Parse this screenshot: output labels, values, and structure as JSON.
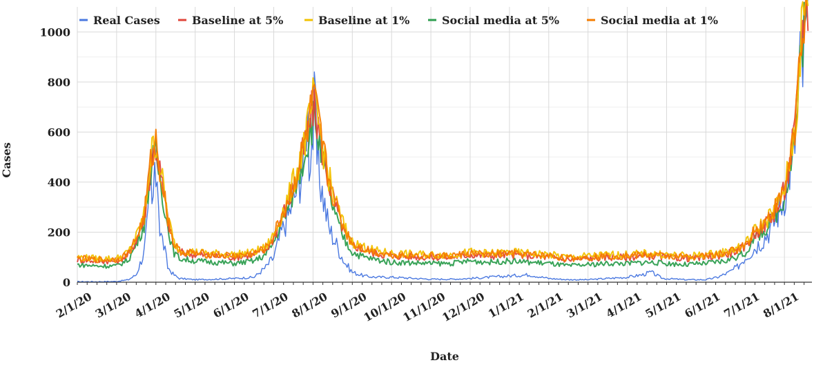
{
  "chart_data": {
    "type": "line",
    "title": "",
    "xlabel": "Date",
    "ylabel": "Cases",
    "ylim": [
      0,
      1100
    ],
    "yticks": [
      0,
      200,
      400,
      600,
      800,
      1000
    ],
    "x_tick_labels": [
      "2/1/20",
      "3/1/20",
      "4/1/20",
      "5/1/20",
      "6/1/20",
      "7/1/20",
      "8/1/20",
      "9/1/20",
      "10/1/20",
      "11/1/20",
      "12/1/20",
      "1/1/21",
      "2/1/21",
      "3/1/21",
      "4/1/21",
      "5/1/21",
      "6/1/21",
      "7/1/21",
      "8/1/21"
    ],
    "grid": true,
    "legend_position": "top",
    "x_start_month": "2/1/20",
    "x_end_date": "8/30/21",
    "note": "monthly index: 0 = 2/1/20, 1 = 3/1/20, ... 18 = 8/1/21",
    "series": [
      {
        "name": "Real Cases",
        "color": "#4a78e0",
        "points": [
          [
            0,
            2
          ],
          [
            0.5,
            2
          ],
          [
            1,
            3
          ],
          [
            1.3,
            10
          ],
          [
            1.5,
            30
          ],
          [
            1.7,
            120
          ],
          [
            1.8,
            250
          ],
          [
            1.85,
            480
          ],
          [
            1.9,
            300
          ],
          [
            2.0,
            430
          ],
          [
            2.05,
            450
          ],
          [
            2.1,
            200
          ],
          [
            2.2,
            150
          ],
          [
            2.3,
            60
          ],
          [
            2.45,
            30
          ],
          [
            2.6,
            15
          ],
          [
            3.0,
            10
          ],
          [
            3.5,
            12
          ],
          [
            4.0,
            15
          ],
          [
            4.5,
            20
          ],
          [
            4.8,
            60
          ],
          [
            5.0,
            100
          ],
          [
            5.2,
            200
          ],
          [
            5.4,
            280
          ],
          [
            5.6,
            380
          ],
          [
            5.8,
            500
          ],
          [
            5.85,
            730
          ],
          [
            5.9,
            500
          ],
          [
            6.0,
            600
          ],
          [
            6.05,
            720
          ],
          [
            6.1,
            480
          ],
          [
            6.25,
            350
          ],
          [
            6.4,
            220
          ],
          [
            6.6,
            150
          ],
          [
            6.8,
            80
          ],
          [
            7.0,
            40
          ],
          [
            7.3,
            25
          ],
          [
            7.6,
            20
          ],
          [
            8.0,
            20
          ],
          [
            9.0,
            12
          ],
          [
            9.5,
            12
          ],
          [
            10.0,
            15
          ],
          [
            10.5,
            20
          ],
          [
            11.0,
            25
          ],
          [
            11.5,
            30
          ],
          [
            12.0,
            15
          ],
          [
            12.5,
            10
          ],
          [
            13.0,
            10
          ],
          [
            13.5,
            15
          ],
          [
            14.0,
            20
          ],
          [
            14.4,
            30
          ],
          [
            14.6,
            40
          ],
          [
            14.9,
            15
          ],
          [
            15.5,
            10
          ],
          [
            16.0,
            10
          ],
          [
            16.3,
            20
          ],
          [
            16.6,
            40
          ],
          [
            16.8,
            60
          ],
          [
            17.0,
            100
          ],
          [
            17.2,
            130
          ],
          [
            17.5,
            180
          ],
          [
            17.7,
            230
          ],
          [
            17.9,
            300
          ],
          [
            18.0,
            350
          ],
          [
            18.1,
            420
          ],
          [
            18.3,
            600
          ],
          [
            18.42,
            900
          ],
          [
            18.48,
            830
          ],
          [
            18.55,
            1000
          ],
          [
            18.6,
            980
          ]
        ]
      },
      {
        "name": "Baseline at 5%",
        "color": "#e0453a",
        "points": [
          [
            0,
            90
          ],
          [
            0.5,
            85
          ],
          [
            1,
            85
          ],
          [
            1.3,
            110
          ],
          [
            1.5,
            170
          ],
          [
            1.7,
            250
          ],
          [
            1.8,
            380
          ],
          [
            1.9,
            500
          ],
          [
            2.0,
            540
          ],
          [
            2.05,
            500
          ],
          [
            2.15,
            400
          ],
          [
            2.3,
            250
          ],
          [
            2.45,
            150
          ],
          [
            2.6,
            120
          ],
          [
            3.0,
            110
          ],
          [
            3.5,
            105
          ],
          [
            4.0,
            100
          ],
          [
            4.5,
            110
          ],
          [
            4.8,
            130
          ],
          [
            5.0,
            180
          ],
          [
            5.2,
            260
          ],
          [
            5.4,
            330
          ],
          [
            5.6,
            430
          ],
          [
            5.8,
            550
          ],
          [
            5.9,
            620
          ],
          [
            6.0,
            700
          ],
          [
            6.1,
            650
          ],
          [
            6.25,
            520
          ],
          [
            6.4,
            400
          ],
          [
            6.6,
            290
          ],
          [
            6.8,
            200
          ],
          [
            7.0,
            150
          ],
          [
            7.3,
            130
          ],
          [
            7.6,
            115
          ],
          [
            8.0,
            105
          ],
          [
            9.0,
            100
          ],
          [
            9.5,
            100
          ],
          [
            10.0,
            110
          ],
          [
            10.5,
            105
          ],
          [
            11.0,
            110
          ],
          [
            11.5,
            105
          ],
          [
            12.0,
            100
          ],
          [
            12.5,
            90
          ],
          [
            13.0,
            95
          ],
          [
            13.5,
            100
          ],
          [
            14.0,
            100
          ],
          [
            14.5,
            105
          ],
          [
            15.0,
            100
          ],
          [
            15.5,
            95
          ],
          [
            16.0,
            100
          ],
          [
            16.5,
            110
          ],
          [
            17.0,
            140
          ],
          [
            17.2,
            190
          ],
          [
            17.5,
            230
          ],
          [
            17.7,
            270
          ],
          [
            17.9,
            320
          ],
          [
            18.0,
            370
          ],
          [
            18.1,
            440
          ],
          [
            18.3,
            650
          ],
          [
            18.42,
            950
          ],
          [
            18.5,
            1080
          ],
          [
            18.6,
            1100
          ]
        ]
      },
      {
        "name": "Baseline at 1%",
        "color": "#f2c200",
        "points": [
          [
            0,
            100
          ],
          [
            0.5,
            95
          ],
          [
            1,
            95
          ],
          [
            1.3,
            120
          ],
          [
            1.5,
            180
          ],
          [
            1.7,
            270
          ],
          [
            1.8,
            400
          ],
          [
            1.9,
            520
          ],
          [
            2.0,
            570
          ],
          [
            2.05,
            520
          ],
          [
            2.15,
            420
          ],
          [
            2.3,
            270
          ],
          [
            2.45,
            160
          ],
          [
            2.6,
            130
          ],
          [
            3.0,
            120
          ],
          [
            3.5,
            115
          ],
          [
            4.0,
            110
          ],
          [
            4.5,
            120
          ],
          [
            4.8,
            140
          ],
          [
            5.0,
            190
          ],
          [
            5.2,
            270
          ],
          [
            5.4,
            350
          ],
          [
            5.6,
            450
          ],
          [
            5.8,
            570
          ],
          [
            5.9,
            640
          ],
          [
            6.0,
            720
          ],
          [
            6.1,
            670
          ],
          [
            6.25,
            540
          ],
          [
            6.4,
            420
          ],
          [
            6.6,
            310
          ],
          [
            6.8,
            220
          ],
          [
            7.0,
            160
          ],
          [
            7.3,
            140
          ],
          [
            7.6,
            125
          ],
          [
            8.0,
            115
          ],
          [
            9.0,
            110
          ],
          [
            9.5,
            110
          ],
          [
            10.0,
            120
          ],
          [
            10.5,
            115
          ],
          [
            11.0,
            120
          ],
          [
            11.5,
            115
          ],
          [
            12.0,
            110
          ],
          [
            12.5,
            100
          ],
          [
            13.0,
            105
          ],
          [
            13.5,
            110
          ],
          [
            14.0,
            110
          ],
          [
            14.5,
            115
          ],
          [
            15.0,
            110
          ],
          [
            15.5,
            105
          ],
          [
            16.0,
            110
          ],
          [
            16.5,
            120
          ],
          [
            17.0,
            150
          ],
          [
            17.2,
            200
          ],
          [
            17.5,
            240
          ],
          [
            17.7,
            280
          ],
          [
            17.9,
            330
          ],
          [
            18.0,
            380
          ],
          [
            18.1,
            450
          ],
          [
            18.3,
            660
          ],
          [
            18.42,
            960
          ],
          [
            18.5,
            1090
          ],
          [
            18.6,
            1120
          ]
        ]
      },
      {
        "name": "Social media at 5%",
        "color": "#2e9e4f",
        "points": [
          [
            0,
            70
          ],
          [
            0.5,
            65
          ],
          [
            1,
            65
          ],
          [
            1.3,
            90
          ],
          [
            1.5,
            150
          ],
          [
            1.7,
            230
          ],
          [
            1.8,
            360
          ],
          [
            1.9,
            470
          ],
          [
            2.0,
            510
          ],
          [
            2.05,
            470
          ],
          [
            2.15,
            370
          ],
          [
            2.3,
            220
          ],
          [
            2.45,
            120
          ],
          [
            2.6,
            95
          ],
          [
            3.0,
            85
          ],
          [
            3.5,
            80
          ],
          [
            4.0,
            75
          ],
          [
            4.5,
            85
          ],
          [
            4.8,
            110
          ],
          [
            5.0,
            160
          ],
          [
            5.2,
            240
          ],
          [
            5.4,
            310
          ],
          [
            5.6,
            410
          ],
          [
            5.8,
            520
          ],
          [
            5.9,
            590
          ],
          [
            6.0,
            660
          ],
          [
            6.1,
            610
          ],
          [
            6.25,
            480
          ],
          [
            6.4,
            360
          ],
          [
            6.6,
            250
          ],
          [
            6.8,
            170
          ],
          [
            7.0,
            120
          ],
          [
            7.3,
            100
          ],
          [
            7.6,
            90
          ],
          [
            8.0,
            80
          ],
          [
            9.0,
            75
          ],
          [
            9.5,
            75
          ],
          [
            10.0,
            85
          ],
          [
            10.5,
            80
          ],
          [
            11.0,
            85
          ],
          [
            11.5,
            80
          ],
          [
            12.0,
            75
          ],
          [
            12.5,
            65
          ],
          [
            13.0,
            70
          ],
          [
            13.5,
            75
          ],
          [
            14.0,
            75
          ],
          [
            14.5,
            80
          ],
          [
            15.0,
            75
          ],
          [
            15.5,
            70
          ],
          [
            16.0,
            75
          ],
          [
            16.5,
            85
          ],
          [
            17.0,
            115
          ],
          [
            17.2,
            170
          ],
          [
            17.5,
            210
          ],
          [
            17.7,
            250
          ],
          [
            17.9,
            300
          ],
          [
            18.0,
            350
          ],
          [
            18.1,
            420
          ],
          [
            18.3,
            620
          ],
          [
            18.42,
            920
          ],
          [
            18.5,
            1050
          ],
          [
            18.6,
            1070
          ]
        ]
      },
      {
        "name": "Social media at 1%",
        "color": "#f57c00",
        "points": [
          [
            0,
            95
          ],
          [
            0.5,
            90
          ],
          [
            1,
            90
          ],
          [
            1.3,
            115
          ],
          [
            1.5,
            175
          ],
          [
            1.7,
            260
          ],
          [
            1.8,
            390
          ],
          [
            1.9,
            510
          ],
          [
            2.0,
            560
          ],
          [
            2.05,
            510
          ],
          [
            2.15,
            410
          ],
          [
            2.3,
            260
          ],
          [
            2.45,
            155
          ],
          [
            2.6,
            125
          ],
          [
            3.0,
            115
          ],
          [
            3.5,
            110
          ],
          [
            4.0,
            105
          ],
          [
            4.5,
            115
          ],
          [
            4.8,
            135
          ],
          [
            5.0,
            185
          ],
          [
            5.2,
            265
          ],
          [
            5.4,
            340
          ],
          [
            5.6,
            440
          ],
          [
            5.8,
            560
          ],
          [
            5.9,
            630
          ],
          [
            6.0,
            740
          ],
          [
            6.1,
            660
          ],
          [
            6.25,
            530
          ],
          [
            6.4,
            410
          ],
          [
            6.6,
            300
          ],
          [
            6.8,
            210
          ],
          [
            7.0,
            155
          ],
          [
            7.3,
            135
          ],
          [
            7.6,
            120
          ],
          [
            8.0,
            110
          ],
          [
            9.0,
            105
          ],
          [
            9.5,
            105
          ],
          [
            10.0,
            115
          ],
          [
            10.5,
            110
          ],
          [
            11.0,
            115
          ],
          [
            11.5,
            110
          ],
          [
            12.0,
            105
          ],
          [
            12.5,
            95
          ],
          [
            13.0,
            100
          ],
          [
            13.5,
            105
          ],
          [
            14.0,
            105
          ],
          [
            14.5,
            110
          ],
          [
            15.0,
            105
          ],
          [
            15.5,
            100
          ],
          [
            16.0,
            105
          ],
          [
            16.5,
            115
          ],
          [
            17.0,
            145
          ],
          [
            17.2,
            200
          ],
          [
            17.5,
            240
          ],
          [
            17.7,
            280
          ],
          [
            17.9,
            330
          ],
          [
            18.0,
            380
          ],
          [
            18.1,
            450
          ],
          [
            18.3,
            670
          ],
          [
            18.42,
            980
          ],
          [
            18.5,
            1100
          ],
          [
            18.6,
            1140
          ]
        ]
      }
    ]
  }
}
